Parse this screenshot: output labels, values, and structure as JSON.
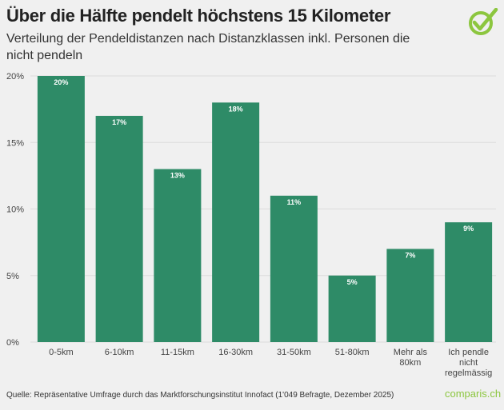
{
  "title": "Über die Hälfte pendelt höchstens 15 Kilometer",
  "subtitle": "Verteilung der Pendeldistanzen nach Distanzklassen inkl. Personen die nicht pendeln",
  "source": "Quelle: Repräsentative Umfrage durch das Marktforschungsinstitut Innofact (1'049 Befragte, Dezember 2025)",
  "brand": "comparis.ch",
  "logo_icon": "checkmark-circle-icon",
  "colors": {
    "bar": "#2e8b67",
    "brand": "#8cc63f",
    "grid": "#dcdcdc"
  },
  "chart_data": {
    "type": "bar",
    "categories": [
      "0-5km",
      "6-10km",
      "11-15km",
      "16-30km",
      "31-50km",
      "51-80km",
      "Mehr als 80km",
      "Ich pendle nicht regelmässig"
    ],
    "category_lines": [
      [
        "0-5km"
      ],
      [
        "6-10km"
      ],
      [
        "11-15km"
      ],
      [
        "16-30km"
      ],
      [
        "31-50km"
      ],
      [
        "51-80km"
      ],
      [
        "Mehr als",
        "80km"
      ],
      [
        "Ich pendle",
        "nicht",
        "regelmässig"
      ]
    ],
    "values": [
      20,
      17,
      13,
      18,
      11,
      5,
      7,
      9
    ],
    "data_labels": [
      "20%",
      "17%",
      "13%",
      "18%",
      "11%",
      "5%",
      "7%",
      "9%"
    ],
    "yticks": [
      0,
      5,
      10,
      15,
      20
    ],
    "ytick_labels": [
      "0%",
      "5%",
      "10%",
      "15%",
      "20%"
    ],
    "ylim": [
      0,
      20
    ],
    "grid": true,
    "xlabel": "",
    "ylabel": ""
  }
}
